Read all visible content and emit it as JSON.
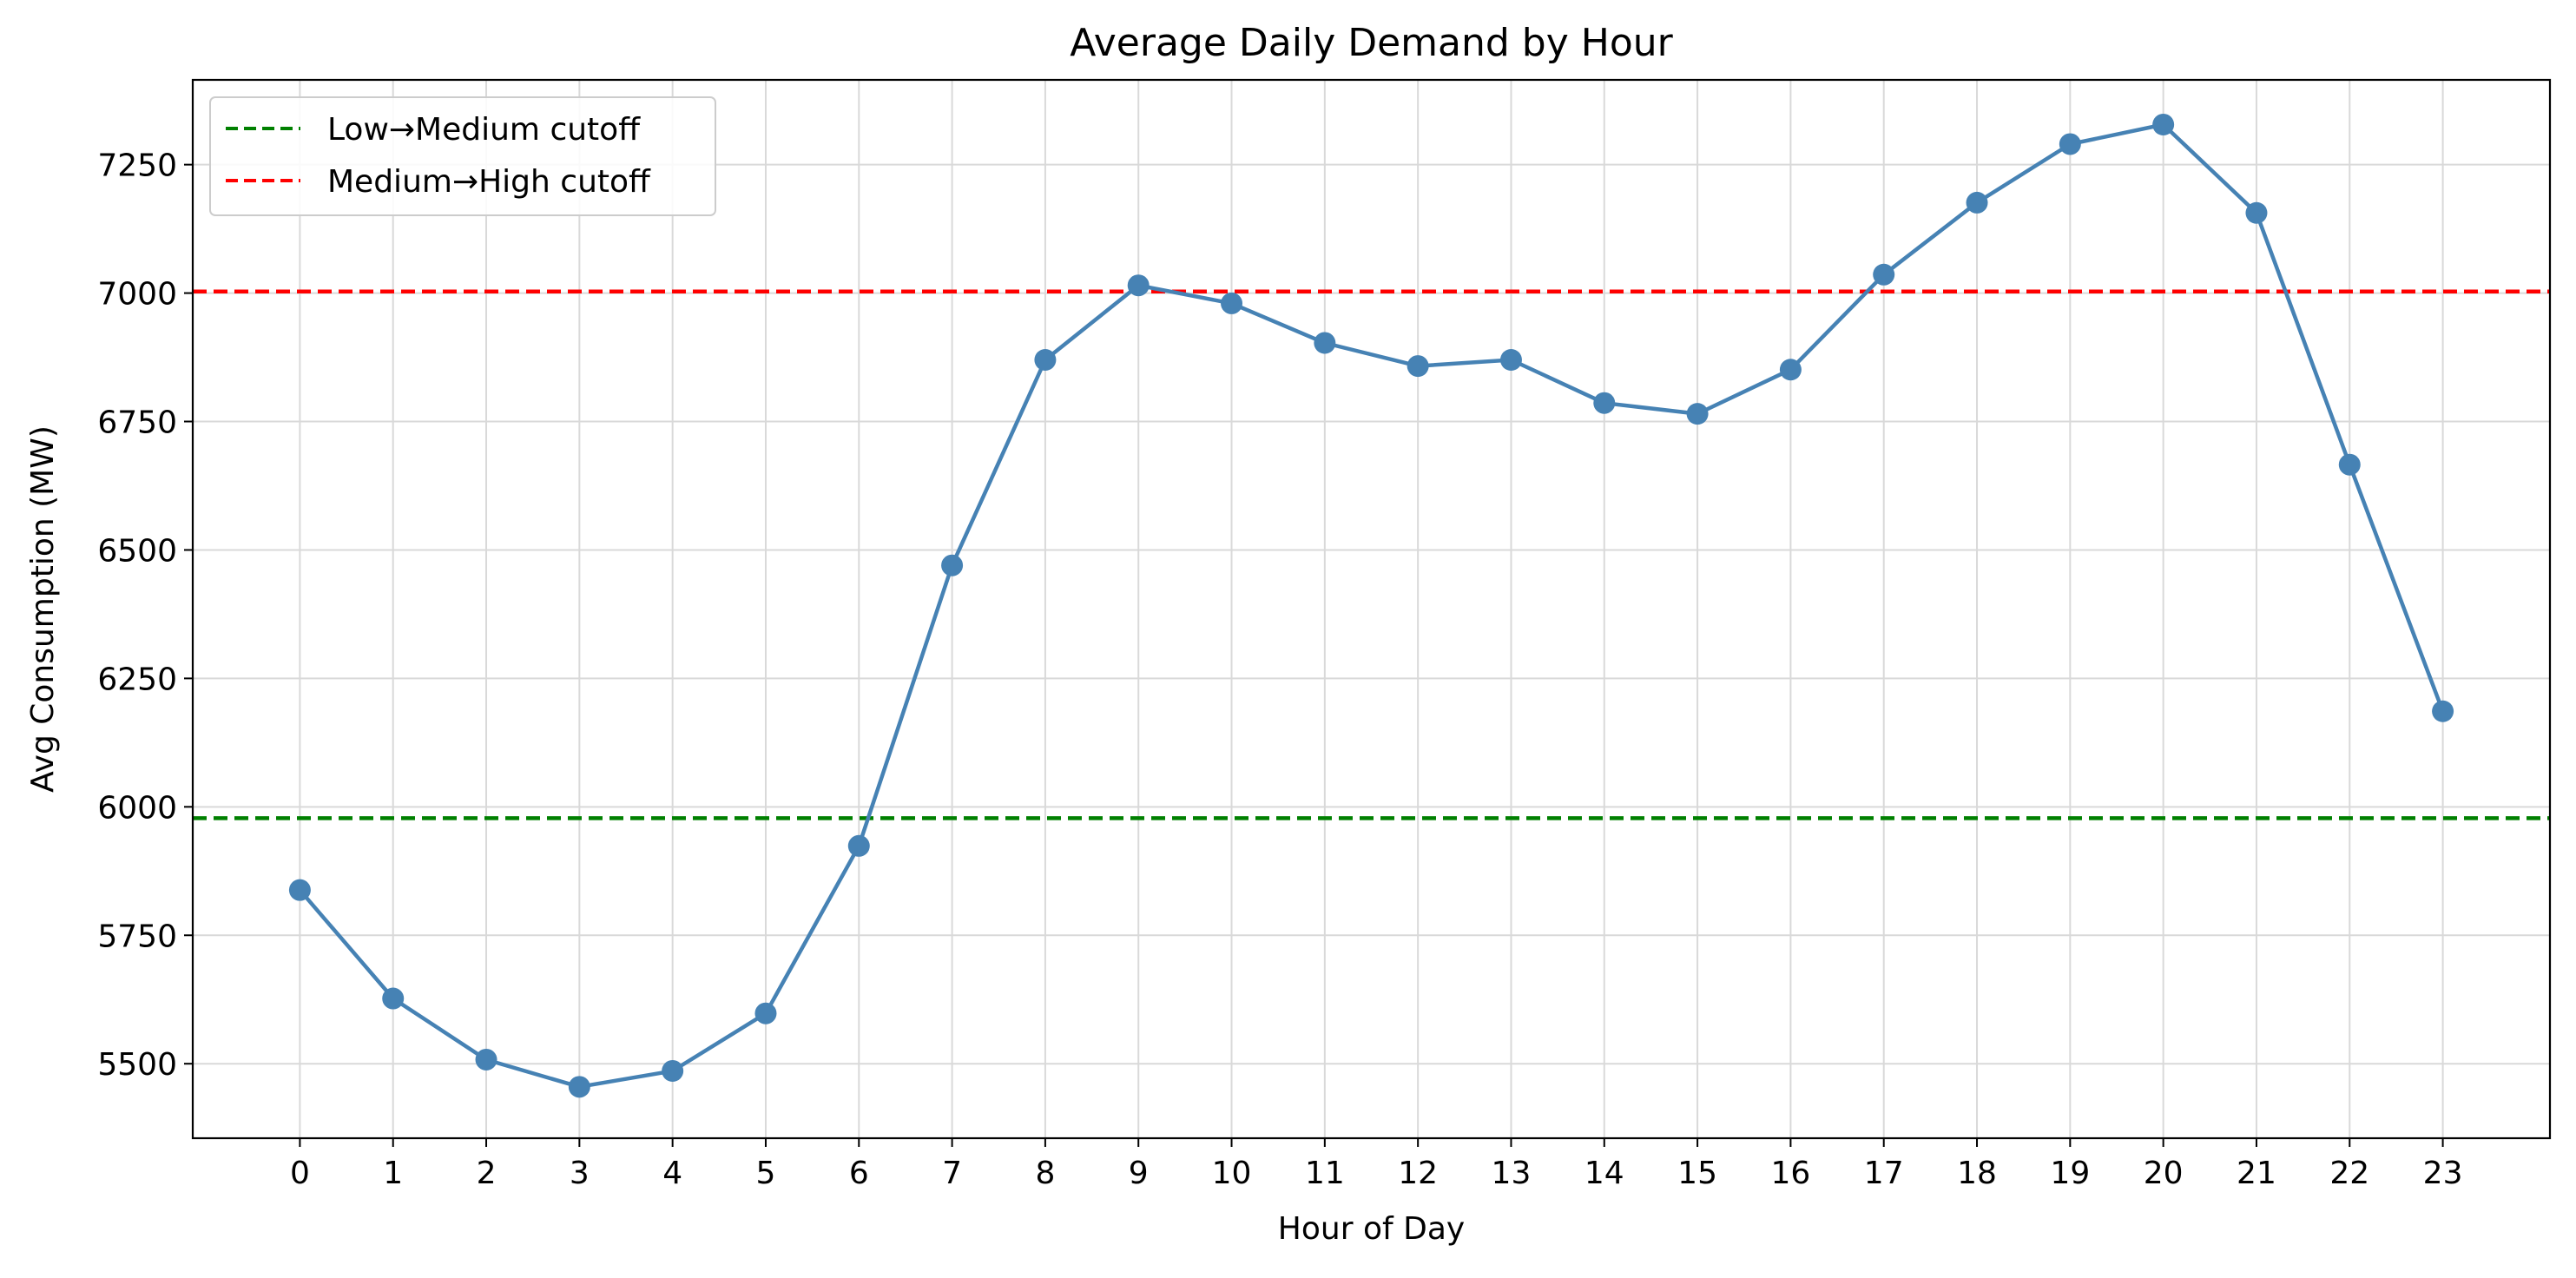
{
  "chart_data": {
    "type": "line",
    "title": "Average Daily Demand by Hour",
    "xlabel": "Hour of Day",
    "ylabel": "Avg Consumption (MW)",
    "x": [
      0,
      1,
      2,
      3,
      4,
      5,
      6,
      7,
      8,
      9,
      10,
      11,
      12,
      13,
      14,
      15,
      16,
      17,
      18,
      19,
      20,
      21,
      22,
      23
    ],
    "x_tick_labels": [
      "0",
      "1",
      "2",
      "3",
      "4",
      "5",
      "6",
      "7",
      "8",
      "9",
      "10",
      "11",
      "12",
      "13",
      "14",
      "15",
      "16",
      "17",
      "18",
      "19",
      "20",
      "21",
      "22",
      "23"
    ],
    "xlim": [
      -1.15,
      24.15
    ],
    "ylim": [
      5355,
      7415
    ],
    "y_ticks": [
      5500,
      5750,
      6000,
      6250,
      6500,
      6750,
      7000,
      7250
    ],
    "y_tick_labels": [
      "5500",
      "5750",
      "6000",
      "6250",
      "6500",
      "6750",
      "7000",
      "7250"
    ],
    "grid": true,
    "series": [
      {
        "values": [
          5838,
          5627,
          5508,
          5455,
          5486,
          5598,
          5924,
          6470,
          6870,
          7015,
          6980,
          6903,
          6858,
          6870,
          6786,
          6765,
          6851,
          7036,
          7176,
          7290,
          7328,
          7156,
          6666,
          6186
        ],
        "color": "#4682b4",
        "marker": "circle"
      }
    ],
    "reference_lines": [
      {
        "name": "Low→Medium cutoff",
        "y": 5978,
        "color": "#008000",
        "style": "dashed"
      },
      {
        "name": "Medium→High cutoff",
        "y": 7003,
        "color": "#ff0000",
        "style": "dashed"
      }
    ],
    "legend_position": "top-left"
  }
}
